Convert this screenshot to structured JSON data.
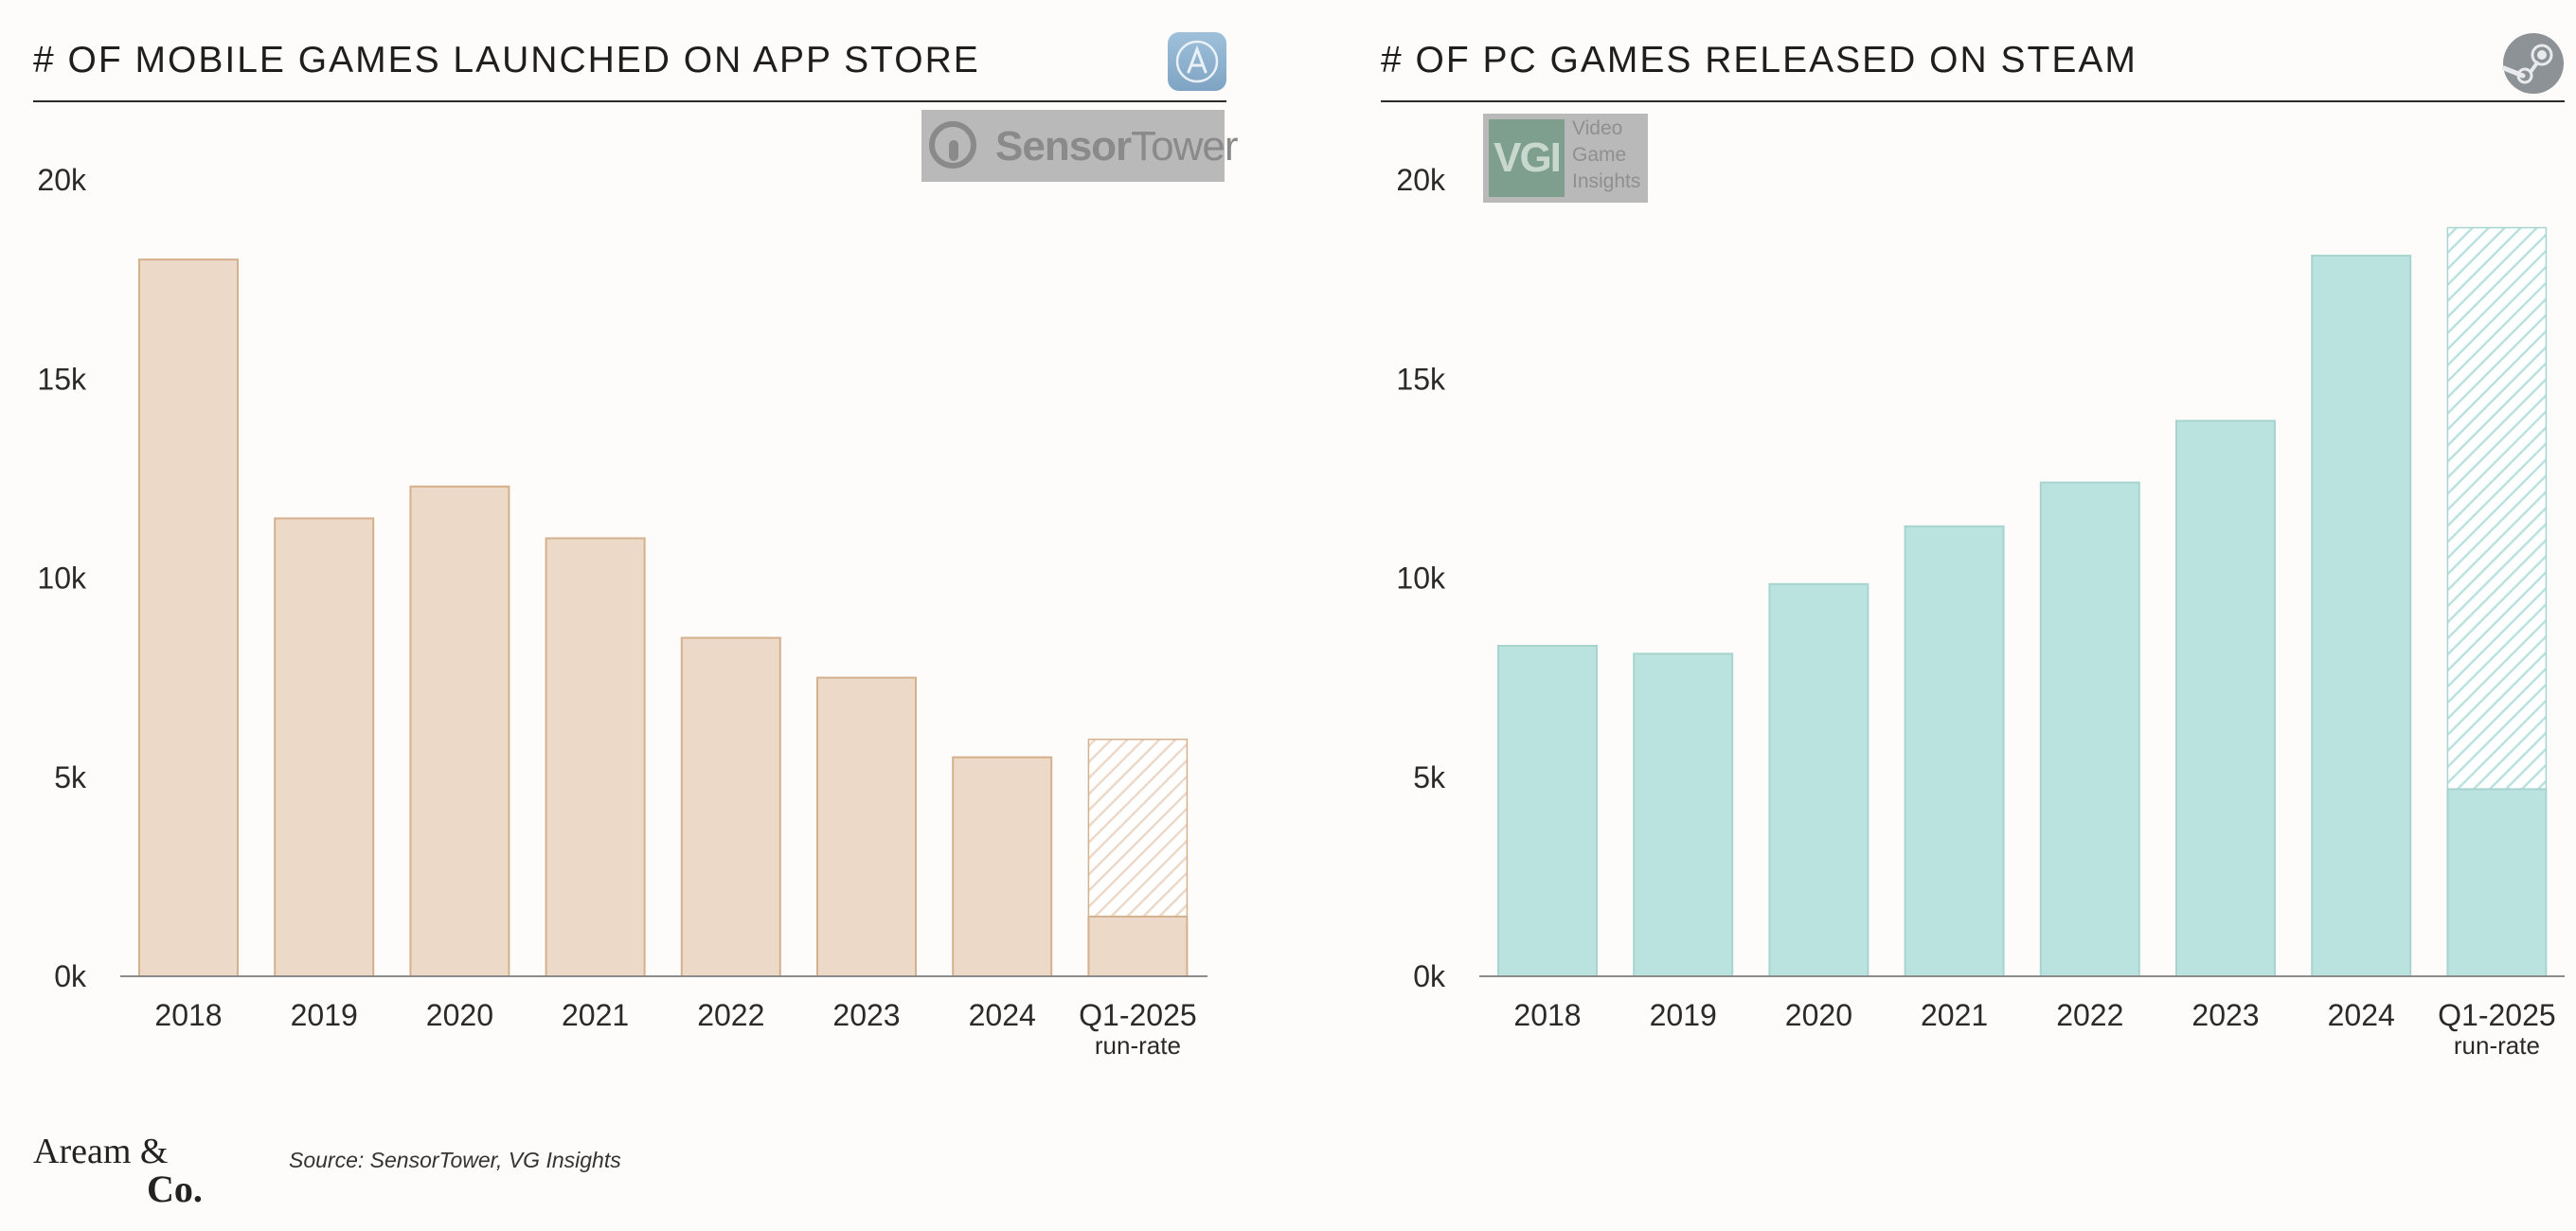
{
  "charts": {
    "left": {
      "title": "# OF MOBILE GAMES LAUNCHED ON APP STORE",
      "icon": "app-store-icon",
      "watermark": "SensorTower"
    },
    "right": {
      "title": "# OF PC GAMES RELEASED ON STEAM",
      "icon": "steam-icon",
      "watermark": [
        "Video",
        "Game",
        "Insights"
      ],
      "watermark_mark": "VGI"
    }
  },
  "footer": {
    "brand_line1": "Aream &",
    "brand_line2": "Co.",
    "source": "Source: SensorTower, VG Insights"
  },
  "colors": {
    "left_fill": "#ecd9c8",
    "left_stroke": "#d4b08d",
    "right_fill": "#bae2df",
    "right_stroke": "#a8d4d0",
    "axis": "#8c8c8c"
  },
  "chart_data": [
    {
      "type": "bar",
      "title": "# OF MOBILE GAMES LAUNCHED ON APP STORE",
      "categories": [
        "2018",
        "2019",
        "2020",
        "2021",
        "2022",
        "2023",
        "2024",
        "Q1-2025"
      ],
      "category_sublabels": [
        "",
        "",
        "",
        "",
        "",
        "",
        "",
        "run-rate"
      ],
      "values": [
        18000,
        11500,
        12300,
        11000,
        8500,
        7500,
        5500,
        1500
      ],
      "run_rate": [
        null,
        null,
        null,
        null,
        null,
        null,
        null,
        5950
      ],
      "yticks": [
        "0k",
        "5k",
        "10k",
        "15k",
        "20k"
      ],
      "ylim": [
        0,
        20000
      ],
      "grid": false
    },
    {
      "type": "bar",
      "title": "# OF PC GAMES RELEASED ON STEAM",
      "categories": [
        "2018",
        "2019",
        "2020",
        "2021",
        "2022",
        "2023",
        "2024",
        "Q1-2025"
      ],
      "category_sublabels": [
        "",
        "",
        "",
        "",
        "",
        "",
        "",
        "run-rate"
      ],
      "values": [
        8300,
        8100,
        9850,
        11300,
        12400,
        13950,
        18100,
        4700
      ],
      "run_rate": [
        null,
        null,
        null,
        null,
        null,
        null,
        null,
        18800
      ],
      "yticks": [
        "0k",
        "5k",
        "10k",
        "15k",
        "20k"
      ],
      "ylim": [
        0,
        20000
      ],
      "grid": false
    }
  ]
}
